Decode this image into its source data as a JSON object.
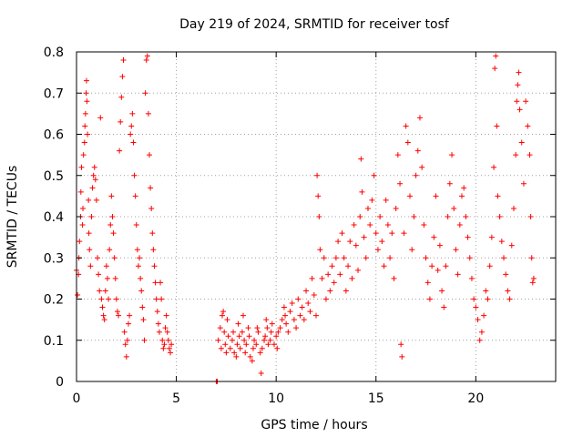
{
  "chart_data": {
    "type": "scatter",
    "title": "Day 219 of 2024, SRMTID for receiver tosf",
    "xlabel": "GPS time / hours",
    "ylabel": "SRMTID / TECUs",
    "xlim": [
      0,
      24
    ],
    "ylim": [
      0,
      0.8
    ],
    "xticks": [
      0,
      5,
      10,
      15,
      20
    ],
    "yticks": [
      0,
      0.1,
      0.2,
      0.3,
      0.4,
      0.5,
      0.6,
      0.7,
      0.8
    ],
    "xtick_labels": [
      "0",
      "5",
      "10",
      "15",
      "20"
    ],
    "ytick_labels": [
      "0",
      "0.1",
      "0.2",
      "0.3",
      "0.4",
      "0.5",
      "0.6",
      "0.7",
      "0.8"
    ],
    "grid": true,
    "marker": "plus",
    "color": "#ff0000",
    "series": [
      {
        "name": "SRMTID",
        "points": [
          [
            0.0,
            0.27
          ],
          [
            0.05,
            0.21
          ],
          [
            0.1,
            0.26
          ],
          [
            0.12,
            0.3
          ],
          [
            0.15,
            0.34
          ],
          [
            0.2,
            0.4
          ],
          [
            0.22,
            0.46
          ],
          [
            0.25,
            0.52
          ],
          [
            0.3,
            0.38
          ],
          [
            0.32,
            0.42
          ],
          [
            0.35,
            0.55
          ],
          [
            0.4,
            0.58
          ],
          [
            0.42,
            0.62
          ],
          [
            0.45,
            0.65
          ],
          [
            0.48,
            0.7
          ],
          [
            0.5,
            0.73
          ],
          [
            0.52,
            0.68
          ],
          [
            0.55,
            0.6
          ],
          [
            0.6,
            0.44
          ],
          [
            0.62,
            0.36
          ],
          [
            0.65,
            0.32
          ],
          [
            0.7,
            0.28
          ],
          [
            0.75,
            0.4
          ],
          [
            0.8,
            0.47
          ],
          [
            0.85,
            0.5
          ],
          [
            0.9,
            0.52
          ],
          [
            0.95,
            0.49
          ],
          [
            1.0,
            0.44
          ],
          [
            1.05,
            0.3
          ],
          [
            1.1,
            0.26
          ],
          [
            1.15,
            0.22
          ],
          [
            1.2,
            0.64
          ],
          [
            1.25,
            0.2
          ],
          [
            1.3,
            0.18
          ],
          [
            1.35,
            0.16
          ],
          [
            1.4,
            0.15
          ],
          [
            1.45,
            0.22
          ],
          [
            1.5,
            0.28
          ],
          [
            1.55,
            0.25
          ],
          [
            1.6,
            0.2
          ],
          [
            1.65,
            0.32
          ],
          [
            1.7,
            0.38
          ],
          [
            1.75,
            0.45
          ],
          [
            1.8,
            0.4
          ],
          [
            1.85,
            0.36
          ],
          [
            1.9,
            0.3
          ],
          [
            1.95,
            0.25
          ],
          [
            2.0,
            0.2
          ],
          [
            2.05,
            0.17
          ],
          [
            2.1,
            0.16
          ],
          [
            2.15,
            0.56
          ],
          [
            2.2,
            0.63
          ],
          [
            2.25,
            0.69
          ],
          [
            2.3,
            0.74
          ],
          [
            2.35,
            0.78
          ],
          [
            2.4,
            0.12
          ],
          [
            2.45,
            0.09
          ],
          [
            2.5,
            0.06
          ],
          [
            2.55,
            0.1
          ],
          [
            2.6,
            0.14
          ],
          [
            2.65,
            0.16
          ],
          [
            2.7,
            0.6
          ],
          [
            2.75,
            0.62
          ],
          [
            2.8,
            0.65
          ],
          [
            2.85,
            0.58
          ],
          [
            2.9,
            0.5
          ],
          [
            2.95,
            0.45
          ],
          [
            3.0,
            0.38
          ],
          [
            3.05,
            0.32
          ],
          [
            3.1,
            0.28
          ],
          [
            3.15,
            0.3
          ],
          [
            3.2,
            0.25
          ],
          [
            3.25,
            0.22
          ],
          [
            3.3,
            0.18
          ],
          [
            3.35,
            0.15
          ],
          [
            3.4,
            0.1
          ],
          [
            3.45,
            0.7
          ],
          [
            3.5,
            0.78
          ],
          [
            3.55,
            0.79
          ],
          [
            3.6,
            0.65
          ],
          [
            3.65,
            0.55
          ],
          [
            3.7,
            0.47
          ],
          [
            3.75,
            0.42
          ],
          [
            3.8,
            0.36
          ],
          [
            3.85,
            0.32
          ],
          [
            3.9,
            0.28
          ],
          [
            3.95,
            0.24
          ],
          [
            4.0,
            0.2
          ],
          [
            4.05,
            0.17
          ],
          [
            4.1,
            0.14
          ],
          [
            4.15,
            0.12
          ],
          [
            4.2,
            0.24
          ],
          [
            4.25,
            0.2
          ],
          [
            4.3,
            0.1
          ],
          [
            4.35,
            0.08
          ],
          [
            4.4,
            0.09
          ],
          [
            4.45,
            0.13
          ],
          [
            4.5,
            0.16
          ],
          [
            4.55,
            0.12
          ],
          [
            4.6,
            0.1
          ],
          [
            4.65,
            0.08
          ],
          [
            4.7,
            0.07
          ],
          [
            4.75,
            0.09
          ],
          [
            7.0,
            0.0
          ],
          [
            7.05,
            0.0
          ],
          [
            7.1,
            0.1
          ],
          [
            7.2,
            0.13
          ],
          [
            7.25,
            0.08
          ],
          [
            7.3,
            0.16
          ],
          [
            7.35,
            0.17
          ],
          [
            7.4,
            0.12
          ],
          [
            7.45,
            0.09
          ],
          [
            7.5,
            0.07
          ],
          [
            7.55,
            0.15
          ],
          [
            7.6,
            0.11
          ],
          [
            7.7,
            0.08
          ],
          [
            7.8,
            0.1
          ],
          [
            7.85,
            0.12
          ],
          [
            7.9,
            0.07
          ],
          [
            8.0,
            0.06
          ],
          [
            8.05,
            0.09
          ],
          [
            8.1,
            0.14
          ],
          [
            8.15,
            0.11
          ],
          [
            8.2,
            0.08
          ],
          [
            8.3,
            0.12
          ],
          [
            8.35,
            0.16
          ],
          [
            8.4,
            0.1
          ],
          [
            8.45,
            0.07
          ],
          [
            8.5,
            0.09
          ],
          [
            8.6,
            0.13
          ],
          [
            8.65,
            0.11
          ],
          [
            8.7,
            0.06
          ],
          [
            8.8,
            0.05
          ],
          [
            8.85,
            0.08
          ],
          [
            8.9,
            0.1
          ],
          [
            9.0,
            0.09
          ],
          [
            9.05,
            0.13
          ],
          [
            9.1,
            0.12
          ],
          [
            9.2,
            0.07
          ],
          [
            9.25,
            0.02
          ],
          [
            9.3,
            0.08
          ],
          [
            9.4,
            0.1
          ],
          [
            9.45,
            0.11
          ],
          [
            9.5,
            0.15
          ],
          [
            9.55,
            0.13
          ],
          [
            9.6,
            0.09
          ],
          [
            9.7,
            0.1
          ],
          [
            9.75,
            0.12
          ],
          [
            9.8,
            0.14
          ],
          [
            9.9,
            0.09
          ],
          [
            10.0,
            0.11
          ],
          [
            10.05,
            0.08
          ],
          [
            10.1,
            0.12
          ],
          [
            10.2,
            0.13
          ],
          [
            10.3,
            0.15
          ],
          [
            10.4,
            0.18
          ],
          [
            10.45,
            0.16
          ],
          [
            10.5,
            0.14
          ],
          [
            10.6,
            0.12
          ],
          [
            10.7,
            0.17
          ],
          [
            10.8,
            0.19
          ],
          [
            10.9,
            0.15
          ],
          [
            11.0,
            0.13
          ],
          [
            11.1,
            0.2
          ],
          [
            11.2,
            0.16
          ],
          [
            11.3,
            0.18
          ],
          [
            11.4,
            0.15
          ],
          [
            11.5,
            0.22
          ],
          [
            11.6,
            0.19
          ],
          [
            11.7,
            0.17
          ],
          [
            11.8,
            0.25
          ],
          [
            11.9,
            0.21
          ],
          [
            12.0,
            0.16
          ],
          [
            12.05,
            0.5
          ],
          [
            12.1,
            0.45
          ],
          [
            12.15,
            0.4
          ],
          [
            12.2,
            0.32
          ],
          [
            12.3,
            0.25
          ],
          [
            12.4,
            0.3
          ],
          [
            12.5,
            0.2
          ],
          [
            12.6,
            0.26
          ],
          [
            12.7,
            0.22
          ],
          [
            12.8,
            0.28
          ],
          [
            12.9,
            0.24
          ],
          [
            13.0,
            0.3
          ],
          [
            13.1,
            0.34
          ],
          [
            13.2,
            0.26
          ],
          [
            13.3,
            0.36
          ],
          [
            13.4,
            0.3
          ],
          [
            13.5,
            0.22
          ],
          [
            13.6,
            0.28
          ],
          [
            13.7,
            0.34
          ],
          [
            13.8,
            0.25
          ],
          [
            13.9,
            0.38
          ],
          [
            14.0,
            0.33
          ],
          [
            14.1,
            0.27
          ],
          [
            14.2,
            0.4
          ],
          [
            14.25,
            0.54
          ],
          [
            14.3,
            0.46
          ],
          [
            14.4,
            0.35
          ],
          [
            14.5,
            0.3
          ],
          [
            14.6,
            0.42
          ],
          [
            14.7,
            0.38
          ],
          [
            14.8,
            0.44
          ],
          [
            14.9,
            0.5
          ],
          [
            15.0,
            0.36
          ],
          [
            15.1,
            0.32
          ],
          [
            15.2,
            0.4
          ],
          [
            15.3,
            0.34
          ],
          [
            15.4,
            0.28
          ],
          [
            15.5,
            0.44
          ],
          [
            15.6,
            0.38
          ],
          [
            15.7,
            0.3
          ],
          [
            15.8,
            0.36
          ],
          [
            15.9,
            0.25
          ],
          [
            16.0,
            0.42
          ],
          [
            16.1,
            0.55
          ],
          [
            16.2,
            0.48
          ],
          [
            16.25,
            0.09
          ],
          [
            16.3,
            0.06
          ],
          [
            16.4,
            0.36
          ],
          [
            16.5,
            0.62
          ],
          [
            16.6,
            0.58
          ],
          [
            16.7,
            0.45
          ],
          [
            16.8,
            0.32
          ],
          [
            16.9,
            0.4
          ],
          [
            17.0,
            0.5
          ],
          [
            17.1,
            0.56
          ],
          [
            17.2,
            0.64
          ],
          [
            17.3,
            0.52
          ],
          [
            17.4,
            0.38
          ],
          [
            17.5,
            0.3
          ],
          [
            17.6,
            0.24
          ],
          [
            17.7,
            0.2
          ],
          [
            17.8,
            0.28
          ],
          [
            17.9,
            0.35
          ],
          [
            18.0,
            0.45
          ],
          [
            18.1,
            0.27
          ],
          [
            18.2,
            0.33
          ],
          [
            18.3,
            0.22
          ],
          [
            18.4,
            0.18
          ],
          [
            18.5,
            0.28
          ],
          [
            18.6,
            0.4
          ],
          [
            18.7,
            0.48
          ],
          [
            18.8,
            0.55
          ],
          [
            18.9,
            0.42
          ],
          [
            19.0,
            0.32
          ],
          [
            19.1,
            0.26
          ],
          [
            19.2,
            0.38
          ],
          [
            19.3,
            0.45
          ],
          [
            19.4,
            0.47
          ],
          [
            19.5,
            0.4
          ],
          [
            19.6,
            0.35
          ],
          [
            19.7,
            0.3
          ],
          [
            19.8,
            0.25
          ],
          [
            19.9,
            0.2
          ],
          [
            20.0,
            0.18
          ],
          [
            20.1,
            0.15
          ],
          [
            20.2,
            0.1
          ],
          [
            20.3,
            0.12
          ],
          [
            20.4,
            0.16
          ],
          [
            20.5,
            0.22
          ],
          [
            20.6,
            0.2
          ],
          [
            20.7,
            0.28
          ],
          [
            20.8,
            0.35
          ],
          [
            20.9,
            0.52
          ],
          [
            20.95,
            0.76
          ],
          [
            21.0,
            0.79
          ],
          [
            21.05,
            0.62
          ],
          [
            21.1,
            0.45
          ],
          [
            21.2,
            0.4
          ],
          [
            21.3,
            0.34
          ],
          [
            21.4,
            0.3
          ],
          [
            21.5,
            0.26
          ],
          [
            21.6,
            0.22
          ],
          [
            21.7,
            0.2
          ],
          [
            21.8,
            0.33
          ],
          [
            21.9,
            0.42
          ],
          [
            22.0,
            0.55
          ],
          [
            22.05,
            0.68
          ],
          [
            22.1,
            0.72
          ],
          [
            22.15,
            0.75
          ],
          [
            22.2,
            0.66
          ],
          [
            22.3,
            0.58
          ],
          [
            22.4,
            0.48
          ],
          [
            22.5,
            0.68
          ],
          [
            22.6,
            0.62
          ],
          [
            22.7,
            0.55
          ],
          [
            22.75,
            0.4
          ],
          [
            22.8,
            0.3
          ],
          [
            22.85,
            0.24
          ],
          [
            22.9,
            0.25
          ]
        ]
      }
    ]
  }
}
